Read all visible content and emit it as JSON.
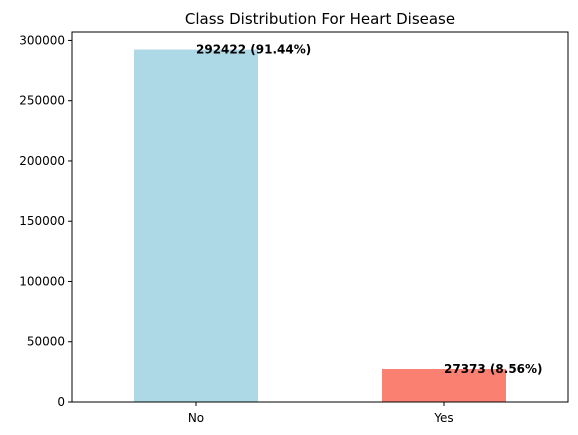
{
  "chart_data": {
    "type": "bar",
    "title": "Class Distribution For Heart Disease",
    "xlabel": "",
    "ylabel": "",
    "categories": [
      "No",
      "Yes"
    ],
    "values": [
      292422,
      27373
    ],
    "data_labels": [
      "292422 (91.44%)",
      "27373 (8.56%)"
    ],
    "bar_colors": [
      "#add8e6",
      "#fa8072"
    ],
    "ylim": [
      0,
      307000
    ],
    "yticks": [
      0,
      50000,
      100000,
      150000,
      200000,
      250000,
      300000
    ],
    "ytick_labels": [
      "0",
      "50000",
      "100000",
      "150000",
      "200000",
      "250000",
      "300000"
    ],
    "grid": false,
    "legend": "none"
  }
}
